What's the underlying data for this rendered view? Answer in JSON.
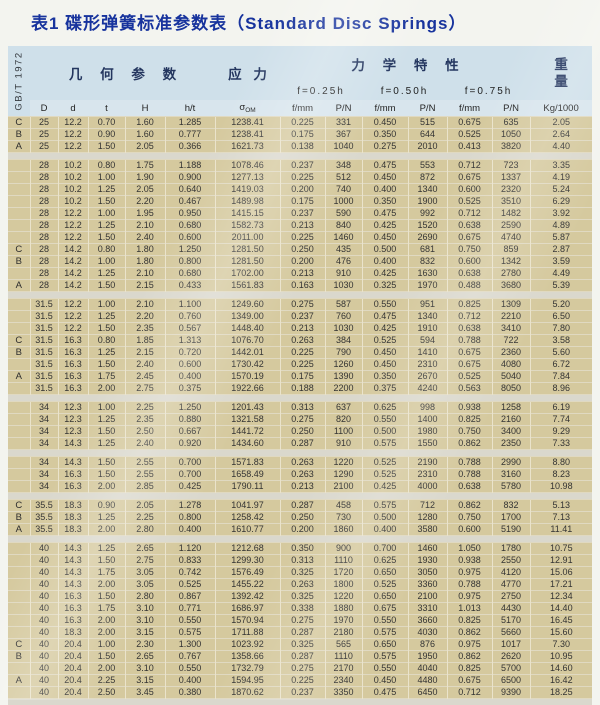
{
  "page": {
    "title": "表1 碟形弹簧标准参数表（Standard Disc Springs）",
    "standard_label": "GB/T 1972"
  },
  "colors": {
    "title_color": "#17339d",
    "header_bg": "#cfe0ea",
    "row_bg": "#d5c99e",
    "separator_bg": "#dad8cd"
  },
  "table": {
    "header_groups": {
      "geometry": "几 何 参 数",
      "stress": "应 力",
      "mechanical": "力 学 特 性",
      "weight_line1": "重",
      "weight_line2": "量"
    },
    "deflection_levels": [
      "f=0.25h",
      "f=0.50h",
      "f=0.75h"
    ],
    "sigma": {
      "base": "σ",
      "sub": "OM"
    },
    "columns": [
      "D",
      "d",
      "t",
      "H",
      "h/t",
      "σOM",
      "f/mm",
      "P/N",
      "f/mm",
      "P/N",
      "f/mm",
      "P/N",
      "Kg/1000"
    ],
    "groups": [
      [
        [
          "C",
          "25",
          "12.2",
          "0.70",
          "1.60",
          "1.285",
          "1238.41",
          "0.225",
          "331",
          "0.450",
          "515",
          "0.675",
          "635",
          "2.05"
        ],
        [
          "B",
          "25",
          "12.2",
          "0.90",
          "1.60",
          "0.777",
          "1238.41",
          "0.175",
          "367",
          "0.350",
          "644",
          "0.525",
          "1050",
          "2.64"
        ],
        [
          "A",
          "25",
          "12.2",
          "1.50",
          "2.05",
          "0.366",
          "1621.73",
          "0.138",
          "1040",
          "0.275",
          "2010",
          "0.413",
          "3820",
          "4.40"
        ]
      ],
      [
        [
          "",
          "28",
          "10.2",
          "0.80",
          "1.75",
          "1.188",
          "1078.46",
          "0.237",
          "348",
          "0.475",
          "553",
          "0.712",
          "723",
          "3.35"
        ],
        [
          "",
          "28",
          "10.2",
          "1.00",
          "1.90",
          "0.900",
          "1277.13",
          "0.225",
          "512",
          "0.450",
          "872",
          "0.675",
          "1337",
          "4.19"
        ],
        [
          "",
          "28",
          "10.2",
          "1.25",
          "2.05",
          "0.640",
          "1419.03",
          "0.200",
          "740",
          "0.400",
          "1340",
          "0.600",
          "2320",
          "5.24"
        ],
        [
          "",
          "28",
          "10.2",
          "1.50",
          "2.20",
          "0.467",
          "1489.98",
          "0.175",
          "1000",
          "0.350",
          "1900",
          "0.525",
          "3510",
          "6.29"
        ],
        [
          "",
          "28",
          "12.2",
          "1.00",
          "1.95",
          "0.950",
          "1415.15",
          "0.237",
          "590",
          "0.475",
          "992",
          "0.712",
          "1482",
          "3.92"
        ],
        [
          "",
          "28",
          "12.2",
          "1.25",
          "2.10",
          "0.680",
          "1582.73",
          "0.213",
          "840",
          "0.425",
          "1520",
          "0.638",
          "2590",
          "4.89"
        ],
        [
          "",
          "28",
          "12.2",
          "1.50",
          "2.40",
          "0.600",
          "2011.00",
          "0.225",
          "1460",
          "0.450",
          "2690",
          "0.675",
          "4740",
          "5.87"
        ],
        [
          "C",
          "28",
          "14.2",
          "0.80",
          "1.80",
          "1.250",
          "1281.50",
          "0.250",
          "435",
          "0.500",
          "681",
          "0.750",
          "859",
          "2.87"
        ],
        [
          "B",
          "28",
          "14.2",
          "1.00",
          "1.80",
          "0.800",
          "1281.50",
          "0.200",
          "476",
          "0.400",
          "832",
          "0.600",
          "1342",
          "3.59"
        ],
        [
          "",
          "28",
          "14.2",
          "1.25",
          "2.10",
          "0.680",
          "1702.00",
          "0.213",
          "910",
          "0.425",
          "1630",
          "0.638",
          "2780",
          "4.49"
        ],
        [
          "A",
          "28",
          "14.2",
          "1.50",
          "2.15",
          "0.433",
          "1561.83",
          "0.163",
          "1030",
          "0.325",
          "1970",
          "0.488",
          "3680",
          "5.39"
        ]
      ],
      [
        [
          "",
          "31.5",
          "12.2",
          "1.00",
          "2.10",
          "1.100",
          "1249.60",
          "0.275",
          "587",
          "0.550",
          "951",
          "0.825",
          "1309",
          "5.20"
        ],
        [
          "",
          "31.5",
          "12.2",
          "1.25",
          "2.20",
          "0.760",
          "1349.00",
          "0.237",
          "760",
          "0.475",
          "1340",
          "0.712",
          "2210",
          "6.50"
        ],
        [
          "",
          "31.5",
          "12.2",
          "1.50",
          "2.35",
          "0.567",
          "1448.40",
          "0.213",
          "1030",
          "0.425",
          "1910",
          "0.638",
          "3410",
          "7.80"
        ],
        [
          "C",
          "31.5",
          "16.3",
          "0.80",
          "1.85",
          "1.313",
          "1076.70",
          "0.263",
          "384",
          "0.525",
          "594",
          "0.788",
          "722",
          "3.58"
        ],
        [
          "B",
          "31.5",
          "16.3",
          "1.25",
          "2.15",
          "0.720",
          "1442.01",
          "0.225",
          "790",
          "0.450",
          "1410",
          "0.675",
          "2360",
          "5.60"
        ],
        [
          "",
          "31.5",
          "16.3",
          "1.50",
          "2.40",
          "0.600",
          "1730.42",
          "0.225",
          "1260",
          "0.450",
          "2310",
          "0.675",
          "4080",
          "6.72"
        ],
        [
          "A",
          "31.5",
          "16.3",
          "1.75",
          "2.45",
          "0.400",
          "1570.19",
          "0.175",
          "1390",
          "0.350",
          "2670",
          "0.525",
          "5040",
          "7.84"
        ],
        [
          "",
          "31.5",
          "16.3",
          "2.00",
          "2.75",
          "0.375",
          "1922.66",
          "0.188",
          "2200",
          "0.375",
          "4240",
          "0.563",
          "8050",
          "8.96"
        ]
      ],
      [
        [
          "",
          "34",
          "12.3",
          "1.00",
          "2.25",
          "1.250",
          "1201.43",
          "0.313",
          "637",
          "0.625",
          "998",
          "0.938",
          "1258",
          "6.19"
        ],
        [
          "",
          "34",
          "12.3",
          "1.25",
          "2.35",
          "0.880",
          "1321.58",
          "0.275",
          "820",
          "0.550",
          "1400",
          "0.825",
          "2160",
          "7.74"
        ],
        [
          "",
          "34",
          "12.3",
          "1.50",
          "2.50",
          "0.667",
          "1441.72",
          "0.250",
          "1100",
          "0.500",
          "1980",
          "0.750",
          "3400",
          "9.29"
        ],
        [
          "",
          "34",
          "14.3",
          "1.25",
          "2.40",
          "0.920",
          "1434.60",
          "0.287",
          "910",
          "0.575",
          "1550",
          "0.862",
          "2350",
          "7.33"
        ]
      ],
      [
        [
          "",
          "34",
          "14.3",
          "1.50",
          "2.55",
          "0.700",
          "1571.83",
          "0.263",
          "1220",
          "0.525",
          "2190",
          "0.788",
          "2990",
          "8.80"
        ],
        [
          "",
          "34",
          "16.3",
          "1.50",
          "2.55",
          "0.700",
          "1658.49",
          "0.263",
          "1290",
          "0.525",
          "2310",
          "0.788",
          "3160",
          "8.23"
        ],
        [
          "",
          "34",
          "16.3",
          "2.00",
          "2.85",
          "0.425",
          "1790.11",
          "0.213",
          "2100",
          "0.425",
          "4000",
          "0.638",
          "5780",
          "10.98"
        ]
      ],
      [
        [
          "C",
          "35.5",
          "18.3",
          "0.90",
          "2.05",
          "1.278",
          "1041.97",
          "0.287",
          "458",
          "0.575",
          "712",
          "0.862",
          "832",
          "5.13"
        ],
        [
          "B",
          "35.5",
          "18.3",
          "1.25",
          "2.25",
          "0.800",
          "1258.42",
          "0.250",
          "730",
          "0.500",
          "1280",
          "0.750",
          "1700",
          "7.13"
        ],
        [
          "A",
          "35.5",
          "18.3",
          "2.00",
          "2.80",
          "0.400",
          "1610.77",
          "0.200",
          "1860",
          "0.400",
          "3580",
          "0.600",
          "5190",
          "11.41"
        ]
      ],
      [
        [
          "",
          "40",
          "14.3",
          "1.25",
          "2.65",
          "1.120",
          "1212.68",
          "0.350",
          "900",
          "0.700",
          "1460",
          "1.050",
          "1780",
          "10.75"
        ],
        [
          "",
          "40",
          "14.3",
          "1.50",
          "2.75",
          "0.833",
          "1299.30",
          "0.313",
          "1110",
          "0.625",
          "1930",
          "0.938",
          "2550",
          "12.91"
        ],
        [
          "",
          "40",
          "14.3",
          "1.75",
          "3.05",
          "0.742",
          "1576.49",
          "0.325",
          "1720",
          "0.650",
          "3050",
          "0.975",
          "4120",
          "15.06"
        ],
        [
          "",
          "40",
          "14.3",
          "2.00",
          "3.05",
          "0.525",
          "1455.22",
          "0.263",
          "1800",
          "0.525",
          "3360",
          "0.788",
          "4770",
          "17.21"
        ],
        [
          "",
          "40",
          "16.3",
          "1.50",
          "2.80",
          "0.867",
          "1392.42",
          "0.325",
          "1220",
          "0.650",
          "2100",
          "0.975",
          "2750",
          "12.34"
        ],
        [
          "",
          "40",
          "16.3",
          "1.75",
          "3.10",
          "0.771",
          "1686.97",
          "0.338",
          "1880",
          "0.675",
          "3310",
          "1.013",
          "4430",
          "14.40"
        ],
        [
          "",
          "40",
          "16.3",
          "2.00",
          "3.10",
          "0.550",
          "1570.94",
          "0.275",
          "1970",
          "0.550",
          "3660",
          "0.825",
          "5170",
          "16.45"
        ],
        [
          "",
          "40",
          "18.3",
          "2.00",
          "3.15",
          "0.575",
          "1711.88",
          "0.287",
          "2180",
          "0.575",
          "4030",
          "0.862",
          "5660",
          "15.60"
        ],
        [
          "C",
          "40",
          "20.4",
          "1.00",
          "2.30",
          "1.300",
          "1023.92",
          "0.325",
          "565",
          "0.650",
          "876",
          "0.975",
          "1017",
          "7.30"
        ],
        [
          "B",
          "40",
          "20.4",
          "1.50",
          "2.65",
          "0.767",
          "1358.66",
          "0.287",
          "1110",
          "0.575",
          "1950",
          "0.862",
          "2620",
          "10.95"
        ],
        [
          "",
          "40",
          "20.4",
          "2.00",
          "3.10",
          "0.550",
          "1732.79",
          "0.275",
          "2170",
          "0.550",
          "4040",
          "0.825",
          "5700",
          "14.60"
        ],
        [
          "A",
          "40",
          "20.4",
          "2.25",
          "3.15",
          "0.400",
          "1594.95",
          "0.225",
          "2340",
          "0.450",
          "4480",
          "0.675",
          "6500",
          "16.42"
        ],
        [
          "",
          "40",
          "20.4",
          "2.50",
          "3.45",
          "0.380",
          "1870.62",
          "0.237",
          "3350",
          "0.475",
          "6450",
          "0.712",
          "9390",
          "18.25"
        ]
      ]
    ]
  }
}
